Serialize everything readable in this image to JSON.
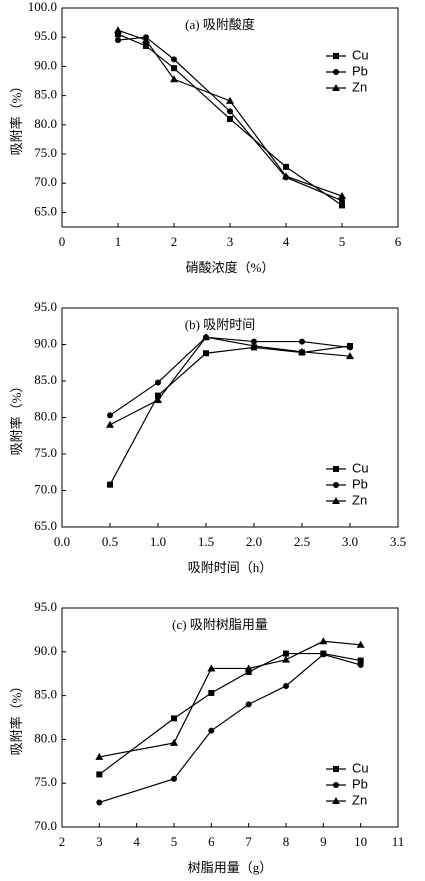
{
  "chart_data": [
    {
      "type": "line",
      "title": "(a)  吸附酸度",
      "xlabel": "硝酸浓度（%）",
      "ylabel": "吸附率（%）",
      "x": [
        1,
        1.5,
        2,
        3,
        4,
        5
      ],
      "series": [
        {
          "name": "Cu",
          "color": "#000000",
          "marker": "square",
          "values": [
            95.5,
            93.5,
            89.7,
            81.0,
            72.8,
            66.2
          ]
        },
        {
          "name": "Pb",
          "color": "#000000",
          "marker": "circle",
          "values": [
            94.5,
            95.0,
            91.2,
            82.3,
            71.0,
            67.0
          ]
        },
        {
          "name": "Zn",
          "color": "#000000",
          "marker": "triangle",
          "values": [
            96.2,
            94.5,
            87.8,
            84.1,
            71.2,
            67.8
          ]
        }
      ],
      "xlim": [
        0,
        6
      ],
      "xticks": [
        0,
        1,
        2,
        3,
        4,
        5,
        6
      ],
      "ylim": [
        62.5,
        100
      ],
      "yticks": [
        {
          "value": 65,
          "label": "65.0"
        },
        {
          "value": 70,
          "label": "70.0"
        },
        {
          "value": 75,
          "label": "75.0"
        },
        {
          "value": 80,
          "label": "80.0"
        },
        {
          "value": 85,
          "label": "85.0"
        },
        {
          "value": 90,
          "label": "90.0"
        },
        {
          "value": 95,
          "label": "95.0"
        },
        {
          "value": 100,
          "label": "100.0"
        }
      ],
      "legend": "upper right"
    },
    {
      "type": "line",
      "title": "(b)  吸附时间",
      "xlabel": "吸附时间（h）",
      "ylabel": "吸附率（%）",
      "x": [
        0.5,
        1,
        1.5,
        2,
        2.5,
        3
      ],
      "series": [
        {
          "name": "Cu",
          "color": "#000000",
          "marker": "square",
          "values": [
            70.8,
            83.0,
            88.8,
            89.6,
            88.9,
            89.8
          ]
        },
        {
          "name": "Pb",
          "color": "#000000",
          "marker": "circle",
          "values": [
            80.3,
            84.8,
            91.0,
            90.4,
            90.4,
            89.6
          ]
        },
        {
          "name": "Zn",
          "color": "#000000",
          "marker": "triangle",
          "values": [
            79.0,
            82.4,
            91.0,
            89.8,
            89.0,
            88.4
          ]
        }
      ],
      "xlim": [
        0,
        3.5
      ],
      "xticks": [
        {
          "value": 0,
          "label": "0.0"
        },
        {
          "value": 0.5,
          "label": "0.5"
        },
        {
          "value": 1,
          "label": "1.0"
        },
        {
          "value": 1.5,
          "label": "1.5"
        },
        {
          "value": 2,
          "label": "2.0"
        },
        {
          "value": 2.5,
          "label": "2.5"
        },
        {
          "value": 3,
          "label": "3.0"
        },
        {
          "value": 3.5,
          "label": "3.5"
        }
      ],
      "ylim": [
        65,
        95
      ],
      "yticks": [
        {
          "value": 65,
          "label": "65.0"
        },
        {
          "value": 70,
          "label": "70.0"
        },
        {
          "value": 75,
          "label": "75.0"
        },
        {
          "value": 80,
          "label": "80.0"
        },
        {
          "value": 85,
          "label": "85.0"
        },
        {
          "value": 90,
          "label": "90.0"
        },
        {
          "value": 95,
          "label": "95.0"
        }
      ],
      "legend": "lower right"
    },
    {
      "type": "line",
      "title": "(c)  吸附树脂用量",
      "xlabel": "树脂用量（g）",
      "ylabel": "吸附率（%）",
      "x": [
        3,
        5,
        6,
        7,
        8,
        9,
        10
      ],
      "series": [
        {
          "name": "Cu",
          "color": "#000000",
          "marker": "square",
          "values": [
            76.0,
            82.4,
            85.3,
            87.7,
            89.8,
            89.8,
            89.0
          ]
        },
        {
          "name": "Pb",
          "color": "#000000",
          "marker": "circle",
          "values": [
            72.8,
            75.5,
            81.0,
            84.0,
            86.1,
            89.7,
            88.5
          ]
        },
        {
          "name": "Zn",
          "color": "#000000",
          "marker": "triangle",
          "values": [
            78.0,
            79.6,
            88.1,
            88.1,
            89.1,
            91.2,
            90.8
          ]
        }
      ],
      "xlim": [
        2,
        11
      ],
      "xticks": [
        2,
        3,
        4,
        5,
        6,
        7,
        8,
        9,
        10,
        11
      ],
      "ylim": [
        70,
        95
      ],
      "yticks": [
        {
          "value": 70,
          "label": "70.0"
        },
        {
          "value": 75,
          "label": "75.0"
        },
        {
          "value": 80,
          "label": "80.0"
        },
        {
          "value": 85,
          "label": "85.0"
        },
        {
          "value": 90,
          "label": "90.0"
        },
        {
          "value": 95,
          "label": "95.0"
        }
      ],
      "legend": "lower right"
    }
  ]
}
